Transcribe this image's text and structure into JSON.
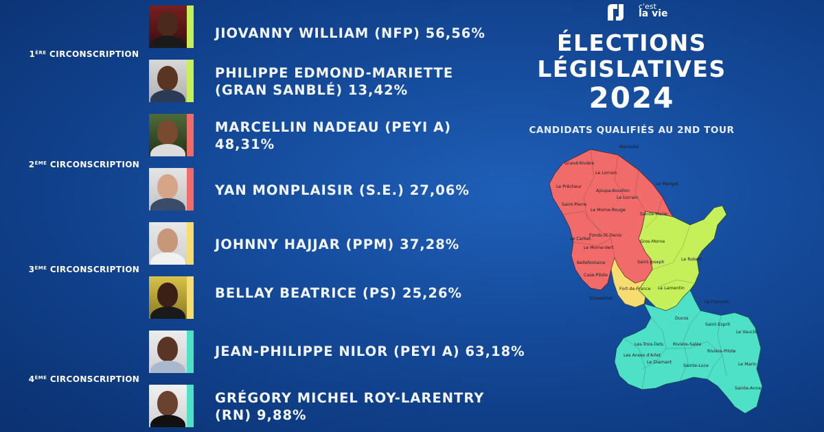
{
  "brand": {
    "logo_line1": "c'est",
    "logo_line2": "la vie"
  },
  "title": {
    "line1": "ÉLECTIONS",
    "line2": "LÉGISLATIVES",
    "year": "2024",
    "subtitle": "CANDIDATS QUALIFIÉS AU 2ND TOUR"
  },
  "circonscriptions": [
    {
      "num": "1",
      "sup": "ÈRE",
      "label": "CIRCONSCRIPTION",
      "color": "#c6f05a"
    },
    {
      "num": "2",
      "sup": "ÈME",
      "label": "CIRCONSCRIPTION",
      "color": "#f26b6b"
    },
    {
      "num": "3",
      "sup": "ÈME",
      "label": "CIRCONSCRIPTION",
      "color": "#f7dc6f"
    },
    {
      "num": "4",
      "sup": "ÈME",
      "label": "CIRCONSCRIPTION",
      "color": "#4fe0c8"
    }
  ],
  "candidates": [
    {
      "line1": "JIOVANNY WILLIAM (NFP) 56,56%",
      "line2": ""
    },
    {
      "line1": "PHILIPPE EDMOND-MARIETTE",
      "line2": "(GRAN SANBLÉ) 13,42%"
    },
    {
      "line1": "MARCELLIN NADEAU (PEYI A)",
      "line2": "48,31%"
    },
    {
      "line1": "YAN MONPLAISIR (S.E.) 27,06%",
      "line2": ""
    },
    {
      "line1": "JOHNNY HAJJAR (PPM) 37,28%",
      "line2": ""
    },
    {
      "line1": "BELLAY BEATRICE (PS) 25,26%",
      "line2": ""
    },
    {
      "line1": "JEAN-PHILIPPE NILOR (PEYI A) 63,18%",
      "line2": ""
    },
    {
      "line1": "GRÉGORY MICHEL ROY-LARENTRY",
      "line2": "(RN) 9,88%"
    }
  ],
  "map_labels": {
    "macouba": "Macouba",
    "grand_riviere": "Grand-Rivière",
    "le_lorrain_1": "Le Lorrain",
    "le_marigot": "Le Marigot",
    "le_precheur": "Le Prêcheur",
    "ajoupa": "Ajoupa-Bouillon",
    "le_lorrain_2": "Le Lorrain",
    "saint_pierre": "Saint-Pierre",
    "le_morne_rouge": "Le Morne-Rouge",
    "sainte_marie": "Sainte-Marie",
    "le_carbet": "Le Carbet",
    "fonds_st_denis": "Fonds-St-Denis",
    "le_morne_vert": "Le Morne-Vert",
    "gros_morne": "Gros-Morne",
    "bellefontaine": "Bellefontaine",
    "saint_joseph": "Saint-Joseph",
    "le_robert": "Le Robert",
    "case_pilote": "Case-Pilote",
    "fort_de_france": "Fort-de-France",
    "le_lamentin": "Le Lamentin",
    "schoelcher": "Schoelcher",
    "le_francois": "Le François",
    "ducos": "Ducos",
    "saint_esprit": "Saint-Esprit",
    "le_vauclin": "Le Vauclin",
    "les_trois_ilets": "Les-Trois-Îlets",
    "riviere_salee": "Rivière-Salée",
    "riviere_pilote": "Rivière-Pilote",
    "les_anses_darlet": "Les Anses d'Arlet",
    "le_diamant": "Le Diamant",
    "sainte_luce": "Sainte-Luce",
    "le_marin": "Le Marin",
    "sainte_anne": "Sainte-Anne"
  }
}
